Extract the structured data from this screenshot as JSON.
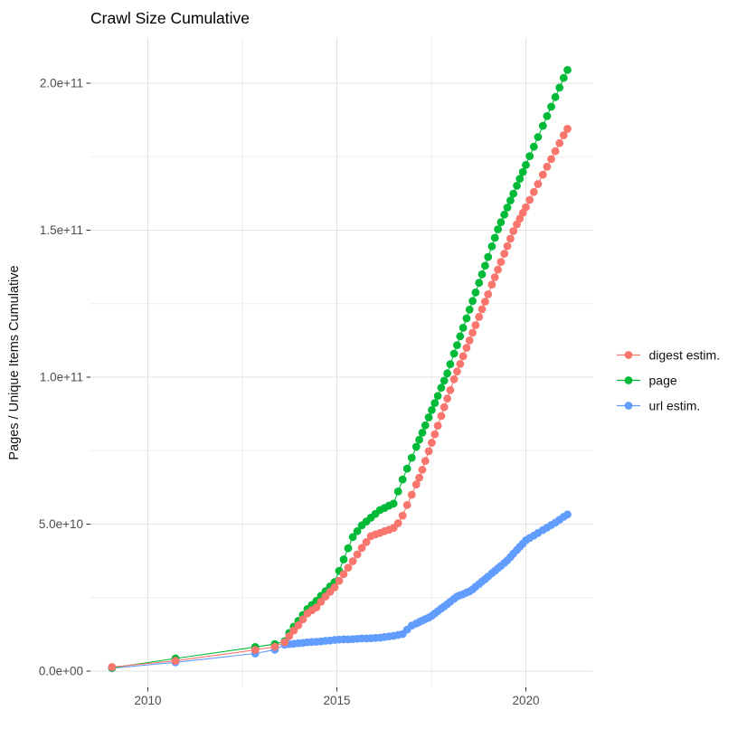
{
  "title": "Crawl Size Cumulative",
  "chart_data": {
    "type": "scatter",
    "title": "Crawl Size Cumulative",
    "xlabel": "",
    "ylabel": "Pages / Unique Items Cumulative",
    "unit_note": "values_in_billions_1e9",
    "xlim": [
      2008.45,
      2021.75
    ],
    "ylim_billions": [
      0,
      215
    ],
    "grid": true,
    "legend_position": "right",
    "x_ticks": [
      {
        "v": 2010,
        "label": "2010"
      },
      {
        "v": 2015,
        "label": "2015"
      },
      {
        "v": 2020,
        "label": "2020"
      }
    ],
    "x_minor_ticks": [
      2012.5,
      2017.5
    ],
    "y_ticks": [
      {
        "v": 0,
        "label": "0.0e+00"
      },
      {
        "v": 50,
        "label": "5.0e+10"
      },
      {
        "v": 100,
        "label": "1.0e+11"
      },
      {
        "v": 150,
        "label": "1.5e+11"
      },
      {
        "v": 200,
        "label": "2.0e+11"
      }
    ],
    "y_minor_ticks": [
      25,
      75,
      125,
      175
    ],
    "x_years": [
      2009.05,
      2010.73,
      2012.84,
      2013.36,
      2013.62,
      2013.74,
      2013.86,
      2013.98,
      2014.1,
      2014.22,
      2014.34,
      2014.46,
      2014.58,
      2014.7,
      2014.82,
      2014.94,
      2015.06,
      2015.18,
      2015.3,
      2015.42,
      2015.54,
      2015.66,
      2015.78,
      2015.9,
      2016.02,
      2016.14,
      2016.26,
      2016.38,
      2016.5,
      2016.62,
      2016.74,
      2016.86,
      2016.98,
      2017.1,
      2017.18,
      2017.26,
      2017.34,
      2017.43,
      2017.51,
      2017.59,
      2017.67,
      2017.76,
      2017.84,
      2017.92,
      2018.0,
      2018.1,
      2018.18,
      2018.26,
      2018.34,
      2018.43,
      2018.51,
      2018.59,
      2018.67,
      2018.76,
      2018.84,
      2018.92,
      2019.0,
      2019.1,
      2019.18,
      2019.26,
      2019.34,
      2019.43,
      2019.51,
      2019.59,
      2019.67,
      2019.76,
      2019.84,
      2019.92,
      2020.0,
      2020.1,
      2020.21,
      2020.32,
      2020.45,
      2020.56,
      2020.67,
      2020.78,
      2020.89,
      2021.0,
      2021.1
    ],
    "series": [
      {
        "name": "url estim.",
        "color": "#619CFF",
        "values": [
          1.0,
          3.0,
          6.0,
          7.3,
          9.0,
          9.2,
          9.3,
          9.5,
          9.6,
          9.8,
          9.9,
          10.0,
          10.1,
          10.3,
          10.4,
          10.6,
          10.7,
          10.8,
          10.8,
          10.9,
          11.0,
          11.1,
          11.1,
          11.2,
          11.3,
          11.4,
          11.6,
          11.8,
          12.0,
          12.3,
          12.6,
          14.1,
          15.5,
          16.2,
          16.7,
          17.2,
          17.7,
          18.2,
          18.8,
          19.6,
          20.4,
          21.3,
          22.0,
          22.8,
          23.6,
          24.6,
          25.4,
          25.8,
          26.2,
          26.7,
          27.1,
          27.8,
          28.7,
          29.6,
          30.5,
          31.3,
          32.2,
          33.3,
          34.1,
          35.0,
          35.8,
          36.8,
          37.7,
          38.8,
          40.0,
          41.2,
          42.3,
          43.4,
          44.5,
          45.3,
          46.1,
          47.0,
          48.0,
          48.8,
          49.7,
          50.5,
          51.5,
          52.5,
          53.3
        ]
      },
      {
        "name": "page",
        "color": "#00BA38",
        "values": [
          1.1,
          4.3,
          8.2,
          9.2,
          10.2,
          13.0,
          15.1,
          17.1,
          19.1,
          21.1,
          22.5,
          23.9,
          25.6,
          27.2,
          28.8,
          30.3,
          34.1,
          38.0,
          41.8,
          45.6,
          47.6,
          49.6,
          50.9,
          52.2,
          53.5,
          54.8,
          55.5,
          56.3,
          57.0,
          61.1,
          65.2,
          68.9,
          72.6,
          76.3,
          78.7,
          81.1,
          83.6,
          86.3,
          88.8,
          91.2,
          93.6,
          96.4,
          98.8,
          101.3,
          104.4,
          108.0,
          110.9,
          113.9,
          116.8,
          120.0,
          123.0,
          125.9,
          128.8,
          132.1,
          135.0,
          137.9,
          140.9,
          144.5,
          147.4,
          150.3,
          152.7,
          155.3,
          157.7,
          160.1,
          162.4,
          165.1,
          167.5,
          169.8,
          172.2,
          175.2,
          178.4,
          181.7,
          185.5,
          188.8,
          192.0,
          195.3,
          198.5,
          201.8,
          204.5
        ]
      },
      {
        "name": "digest estim.",
        "color": "#F8766D",
        "values": [
          1.4,
          3.5,
          7.2,
          8.3,
          9.8,
          11.9,
          13.8,
          15.6,
          17.6,
          19.6,
          20.7,
          21.7,
          23.6,
          25.4,
          27.0,
          28.5,
          30.7,
          33.0,
          35.2,
          37.4,
          39.7,
          41.9,
          43.9,
          45.9,
          46.5,
          47.0,
          47.6,
          48.1,
          48.7,
          50.3,
          52.9,
          56.5,
          60.0,
          63.5,
          65.8,
          68.5,
          71.5,
          74.8,
          77.7,
          80.6,
          83.5,
          86.8,
          89.8,
          92.7,
          95.6,
          99.3,
          101.9,
          104.5,
          107.1,
          110.0,
          112.5,
          115.1,
          117.7,
          120.5,
          123.1,
          125.7,
          128.2,
          131.5,
          134.0,
          136.6,
          139.2,
          142.0,
          144.6,
          147.1,
          149.7,
          152.0,
          153.9,
          155.9,
          157.8,
          160.3,
          163.0,
          165.7,
          168.9,
          171.6,
          174.2,
          176.9,
          179.6,
          182.3,
          184.5
        ]
      }
    ]
  },
  "legend": {
    "items": [
      {
        "label": "digest estim.",
        "color": "#F8766D"
      },
      {
        "label": "page",
        "color": "#00BA38"
      },
      {
        "label": "url estim.",
        "color": "#619CFF"
      }
    ]
  },
  "colors": {
    "grid_major": "#e2e2e2",
    "grid_minor": "#ededed",
    "tick": "#333333",
    "axis_text": "#4d4d4d"
  }
}
